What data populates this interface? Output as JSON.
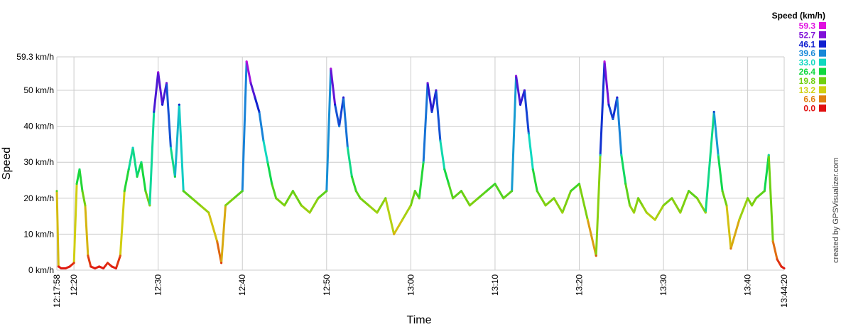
{
  "chart_data": {
    "type": "line",
    "ylabel": "Speed",
    "xlabel": "Time",
    "legend_title": "Speed (km/h)",
    "credit": "created by GPSVisualizer.com",
    "ylim": [
      0,
      59.3
    ],
    "y_ticks": [
      {
        "value": 0,
        "label": "0 km/h"
      },
      {
        "value": 10,
        "label": "10 km/h"
      },
      {
        "value": 20,
        "label": "20 km/h"
      },
      {
        "value": 30,
        "label": "30 km/h"
      },
      {
        "value": 40,
        "label": "40 km/h"
      },
      {
        "value": 50,
        "label": "50 km/h"
      },
      {
        "value": 59.3,
        "label": "59.3 km/h"
      }
    ],
    "xlim": [
      "12:17:58",
      "13:44:20"
    ],
    "x_ticks": [
      "12:17:58",
      "12:20",
      "12:30",
      "12:40",
      "12:50",
      "13:00",
      "13:10",
      "13:20",
      "13:30",
      "13:40",
      "13:44:20"
    ],
    "grid": true,
    "legend": [
      {
        "label": "59.3",
        "color": "#e010e0"
      },
      {
        "label": "52.7",
        "color": "#8010d8"
      },
      {
        "label": "46.1",
        "color": "#1020d0"
      },
      {
        "label": "39.6",
        "color": "#1888d8"
      },
      {
        "label": "33.0",
        "color": "#10d8c0"
      },
      {
        "label": "26.4",
        "color": "#10d840"
      },
      {
        "label": "19.8",
        "color": "#70d010"
      },
      {
        "label": "13.2",
        "color": "#d0d010"
      },
      {
        "label": "6.6",
        "color": "#e08010"
      },
      {
        "label": "0.0",
        "color": "#e01010"
      }
    ],
    "series": [
      {
        "x": [
          "12:17:58",
          "12:18:10",
          "12:18:30",
          "12:19:00",
          "12:19:30",
          "12:20:00",
          "12:20:20",
          "12:20:40",
          "12:21:00",
          "12:21:20",
          "12:21:40",
          "12:22:00",
          "12:22:30",
          "12:23:00",
          "12:23:30",
          "12:24:00",
          "12:24:30",
          "12:25:00",
          "12:25:30",
          "12:26:00",
          "12:26:30",
          "12:27:00",
          "12:27:30",
          "12:28:00",
          "12:28:30",
          "12:29:00",
          "12:29:30",
          "12:30:00",
          "12:30:30",
          "12:31:00",
          "12:31:30",
          "12:32:00",
          "12:32:30",
          "12:33:00",
          "12:34:00",
          "12:35:00",
          "12:36:00",
          "12:37:00",
          "12:37:30",
          "12:38:00",
          "12:39:00",
          "12:40:00",
          "12:40:30",
          "12:41:00",
          "12:41:30",
          "12:42:00",
          "12:42:30",
          "12:43:00",
          "12:43:30",
          "12:44:00",
          "12:45:00",
          "12:46:00",
          "12:47:00",
          "12:48:00",
          "12:49:00",
          "12:50:00",
          "12:50:30",
          "12:51:00",
          "12:51:30",
          "12:52:00",
          "12:52:30",
          "12:53:00",
          "12:53:30",
          "12:54:00",
          "12:55:00",
          "12:56:00",
          "12:57:00",
          "12:58:00",
          "12:59:00",
          "13:00:00",
          "13:00:30",
          "13:01:00",
          "13:01:30",
          "13:02:00",
          "13:02:30",
          "13:03:00",
          "13:03:30",
          "13:04:00",
          "13:04:30",
          "13:05:00",
          "13:06:00",
          "13:07:00",
          "13:08:00",
          "13:09:00",
          "13:10:00",
          "13:11:00",
          "13:12:00",
          "13:12:30",
          "13:13:00",
          "13:13:30",
          "13:14:00",
          "13:14:30",
          "13:15:00",
          "13:15:30",
          "13:16:00",
          "13:17:00",
          "13:18:00",
          "13:19:00",
          "13:20:00",
          "13:21:00",
          "13:22:00",
          "13:22:30",
          "13:23:00",
          "13:23:30",
          "13:24:00",
          "13:24:30",
          "13:25:00",
          "13:25:30",
          "13:26:00",
          "13:26:30",
          "13:27:00",
          "13:27:30",
          "13:28:00",
          "13:29:00",
          "13:30:00",
          "13:31:00",
          "13:32:00",
          "13:33:00",
          "13:34:00",
          "13:35:00",
          "13:36:00",
          "13:36:30",
          "13:37:00",
          "13:37:30",
          "13:38:00",
          "13:39:00",
          "13:40:00",
          "13:40:30",
          "13:41:00",
          "13:42:00",
          "13:42:30",
          "13:43:00",
          "13:43:30",
          "13:44:00",
          "13:44:20"
        ],
        "speeds": [
          22,
          1,
          0.5,
          0.5,
          1,
          2,
          24,
          28,
          22,
          18,
          4,
          1,
          0.5,
          1,
          0.5,
          2,
          1,
          0.5,
          4,
          22,
          28,
          34,
          26,
          30,
          22,
          18,
          44,
          55,
          46,
          52,
          34,
          26,
          46,
          22,
          20,
          18,
          16,
          8,
          2,
          18,
          20,
          22,
          58,
          52,
          48,
          44,
          36,
          30,
          24,
          20,
          18,
          22,
          18,
          16,
          20,
          22,
          56,
          46,
          40,
          48,
          34,
          26,
          22,
          20,
          18,
          16,
          20,
          10,
          14,
          18,
          22,
          20,
          30,
          52,
          44,
          50,
          36,
          28,
          24,
          20,
          22,
          18,
          20,
          22,
          24,
          20,
          22,
          54,
          46,
          50,
          38,
          28,
          22,
          20,
          18,
          20,
          16,
          22,
          24,
          14,
          4,
          32,
          58,
          46,
          42,
          48,
          32,
          24,
          18,
          16,
          20,
          18,
          16,
          14,
          18,
          20,
          16,
          22,
          20,
          16,
          44,
          32,
          22,
          18,
          6,
          14,
          20,
          18,
          20,
          22,
          32,
          8,
          3,
          1,
          0.5
        ]
      }
    ]
  }
}
